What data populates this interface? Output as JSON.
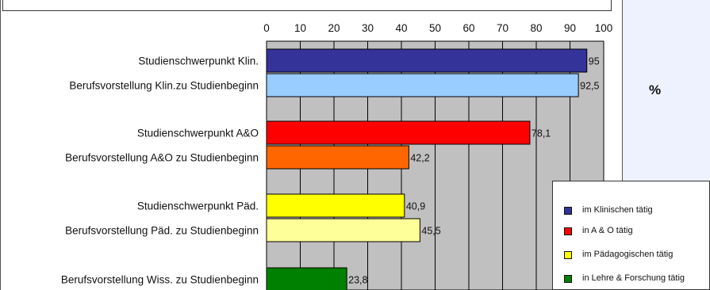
{
  "chart_data": {
    "type": "bar",
    "orientation": "horizontal",
    "unit": "%",
    "xlim": [
      0,
      100
    ],
    "ticks": [
      "0",
      "10",
      "20",
      "30",
      "40",
      "50",
      "60",
      "70",
      "80",
      "90",
      "100"
    ],
    "grid": true,
    "legend_position": "bottom-right",
    "categories": [
      "Studienschwerpunkt Klin.",
      "Berufsvorstellung Klin.zu Studienbeginn",
      "Studienschwerpunkt A&O",
      "Berufsvorstellung A&O zu Studienbeginn",
      "Studienschwerpunkt Päd.",
      "Berufsvorstellung Päd. zu Studienbeginn",
      "Berufsvorstellung Wiss. zu Studienbeginn"
    ],
    "values": [
      95,
      92.5,
      78.1,
      42.2,
      40.9,
      45.5,
      23.8
    ],
    "value_labels": [
      "95",
      "92,5",
      "78,1",
      "42,2",
      "40,9",
      "45,5",
      "23,8"
    ],
    "bar_colors": [
      "#333399",
      "#99ccff",
      "#ff0000",
      "#ff6600",
      "#ffff00",
      "#ffff99",
      "#008000"
    ],
    "legend": [
      {
        "label": "im Klinischen tätig",
        "color": "#333399"
      },
      {
        "label": "in A & O tätig",
        "color": "#ff0000"
      },
      {
        "label": "im Pädagogischen tätig",
        "color": "#ffff00"
      },
      {
        "label": "in Lehre & Forschung tätig",
        "color": "#008000"
      }
    ]
  },
  "colors": {
    "plot_background": "#c0c0c0",
    "panel_background": "#eef2ff"
  }
}
